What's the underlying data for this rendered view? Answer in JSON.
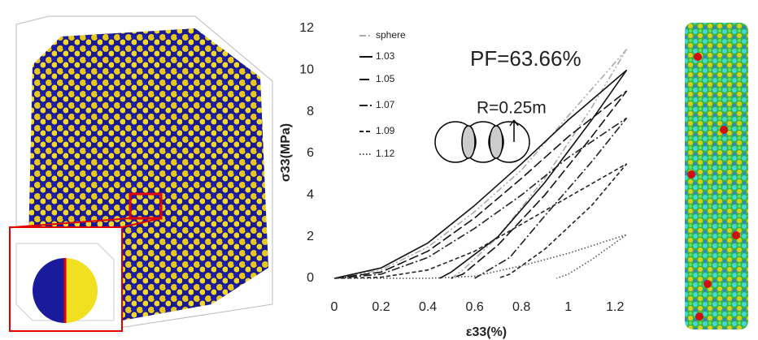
{
  "chart_data": {
    "type": "line",
    "annotations": [
      "PF=63.66%",
      "R=0.25m"
    ],
    "x_label": "ε33(%)",
    "y_label": "σ33(MPa)",
    "xlim": [
      0,
      1.3
    ],
    "ylim": [
      0,
      12
    ],
    "xticks": [
      0,
      0.2,
      0.4,
      0.6,
      0.8,
      1,
      1.2
    ],
    "yticks": [
      0,
      2,
      4,
      6,
      8,
      10,
      12
    ],
    "series": [
      {
        "name": "sphere",
        "color": "#aaaaaa",
        "dash": "8 3 2 3 2 3",
        "x": [
          0,
          0.2,
          0.4,
          0.6,
          0.8,
          1.0,
          1.25,
          1.1,
          0.9,
          0.7,
          0.55,
          0.5
        ],
        "values": [
          0,
          0.4,
          1.5,
          3.2,
          5.2,
          7.8,
          11.0,
          8.2,
          4.8,
          2.0,
          0.4,
          0
        ]
      },
      {
        "name": "1.03",
        "color": "#111111",
        "dash": "none",
        "x": [
          0,
          0.2,
          0.4,
          0.6,
          0.8,
          1.0,
          1.25,
          1.1,
          0.9,
          0.7,
          0.5,
          0.45
        ],
        "values": [
          0,
          0.5,
          1.7,
          3.5,
          5.5,
          7.6,
          10.0,
          7.6,
          4.6,
          2.0,
          0.3,
          0
        ]
      },
      {
        "name": "1.05",
        "color": "#111111",
        "dash": "12 4",
        "x": [
          0,
          0.2,
          0.4,
          0.6,
          0.8,
          1.0,
          1.25,
          1.1,
          0.9,
          0.7,
          0.55,
          0.5
        ],
        "values": [
          0,
          0.3,
          1.3,
          2.9,
          4.8,
          6.8,
          9.0,
          6.8,
          4.0,
          1.6,
          0.2,
          0
        ]
      },
      {
        "name": "1.07",
        "color": "#222222",
        "dash": "10 3 2 3",
        "x": [
          0,
          0.2,
          0.4,
          0.6,
          0.8,
          1.0,
          1.25,
          1.1,
          0.9,
          0.75,
          0.6
        ],
        "values": [
          0,
          0.2,
          1.0,
          2.4,
          4.0,
          5.8,
          7.7,
          5.6,
          3.0,
          1.0,
          0
        ]
      },
      {
        "name": "1.09",
        "color": "#222222",
        "dash": "5 3",
        "x": [
          0,
          0.2,
          0.4,
          0.6,
          0.8,
          1.0,
          1.25,
          1.1,
          0.9,
          0.75,
          0.7
        ],
        "values": [
          0,
          0.05,
          0.4,
          1.3,
          2.6,
          3.9,
          5.5,
          3.5,
          1.4,
          0.2,
          0
        ]
      },
      {
        "name": "1.12",
        "color": "#555555",
        "dash": "1.5 2.5",
        "x": [
          0,
          0.4,
          0.6,
          0.8,
          1.0,
          1.25,
          1.1,
          1.0,
          0.95
        ],
        "values": [
          0,
          0,
          0.1,
          0.6,
          1.2,
          2.1,
          0.9,
          0.2,
          0
        ]
      }
    ]
  }
}
